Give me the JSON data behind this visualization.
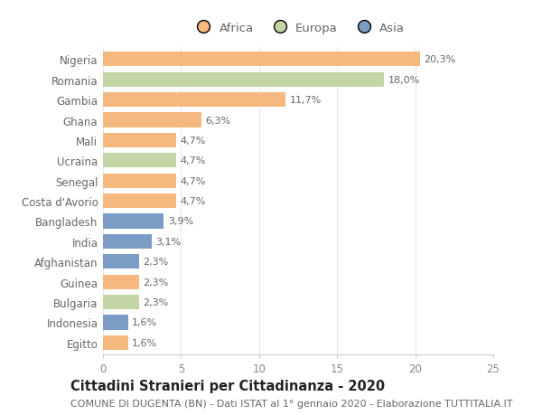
{
  "countries": [
    "Nigeria",
    "Romania",
    "Gambia",
    "Ghana",
    "Mali",
    "Ucraina",
    "Senegal",
    "Costa d'Avorio",
    "Bangladesh",
    "India",
    "Afghanistan",
    "Guinea",
    "Bulgaria",
    "Indonesia",
    "Egitto"
  ],
  "values": [
    20.3,
    18.0,
    11.7,
    6.3,
    4.7,
    4.7,
    4.7,
    4.7,
    3.9,
    3.1,
    2.3,
    2.3,
    2.3,
    1.6,
    1.6
  ],
  "labels": [
    "20,3%",
    "18,0%",
    "11,7%",
    "6,3%",
    "4,7%",
    "4,7%",
    "4,7%",
    "4,7%",
    "3,9%",
    "3,1%",
    "2,3%",
    "2,3%",
    "2,3%",
    "1,6%",
    "1,6%"
  ],
  "continents": [
    "Africa",
    "Europa",
    "Africa",
    "Africa",
    "Africa",
    "Europa",
    "Africa",
    "Africa",
    "Asia",
    "Asia",
    "Asia",
    "Africa",
    "Europa",
    "Asia",
    "Africa"
  ],
  "colors": {
    "Africa": "#F5B97F",
    "Europa": "#C3D4A5",
    "Asia": "#7B9CC4"
  },
  "legend_labels": [
    "Africa",
    "Europa",
    "Asia"
  ],
  "legend_colors": [
    "#F5B97F",
    "#C3D4A5",
    "#7B9CC4"
  ],
  "title": "Cittadini Stranieri per Cittadinanza - 2020",
  "subtitle": "COMUNE DI DUGENTA (BN) - Dati ISTAT al 1° gennaio 2020 - Elaborazione TUTTITALIA.IT",
  "xlim": [
    0,
    25
  ],
  "xticks": [
    0,
    5,
    10,
    15,
    20,
    25
  ],
  "background_color": "#ffffff",
  "bar_height": 0.72,
  "title_fontsize": 10.5,
  "subtitle_fontsize": 8,
  "label_fontsize": 8,
  "tick_fontsize": 8.5,
  "legend_fontsize": 9.5
}
